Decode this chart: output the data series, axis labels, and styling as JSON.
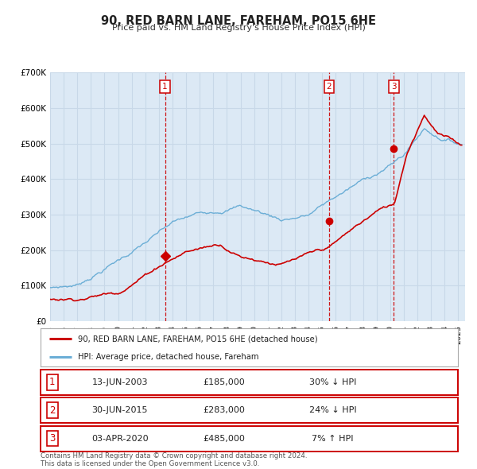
{
  "title": "90, RED BARN LANE, FAREHAM, PO15 6HE",
  "subtitle": "Price paid vs. HM Land Registry's House Price Index (HPI)",
  "background_color": "#ffffff",
  "plot_bg_color": "#dce9f5",
  "grid_color": "#c8d8e8",
  "red_line_color": "#cc0000",
  "blue_line_color": "#6baed6",
  "ylim": [
    0,
    700000
  ],
  "yticks": [
    0,
    100000,
    200000,
    300000,
    400000,
    500000,
    600000,
    700000
  ],
  "ytick_labels": [
    "£0",
    "£100K",
    "£200K",
    "£300K",
    "£400K",
    "£500K",
    "£600K",
    "£700K"
  ],
  "xlim_start": 1995.0,
  "xlim_end": 2025.5,
  "sale_dates": [
    2003.45,
    2015.5,
    2020.27
  ],
  "sale_prices": [
    185000,
    283000,
    485000
  ],
  "sale_labels": [
    "1",
    "2",
    "3"
  ],
  "legend_red_label": "90, RED BARN LANE, FAREHAM, PO15 6HE (detached house)",
  "legend_blue_label": "HPI: Average price, detached house, Fareham",
  "table_rows": [
    {
      "num": "1",
      "date": "13-JUN-2003",
      "price": "£185,000",
      "hpi": "30% ↓ HPI"
    },
    {
      "num": "2",
      "date": "30-JUN-2015",
      "price": "£283,000",
      "hpi": "24% ↓ HPI"
    },
    {
      "num": "3",
      "date": "03-APR-2020",
      "price": "£485,000",
      "hpi": "7% ↑ HPI"
    }
  ],
  "footnote": "Contains HM Land Registry data © Crown copyright and database right 2024.\nThis data is licensed under the Open Government Licence v3.0."
}
